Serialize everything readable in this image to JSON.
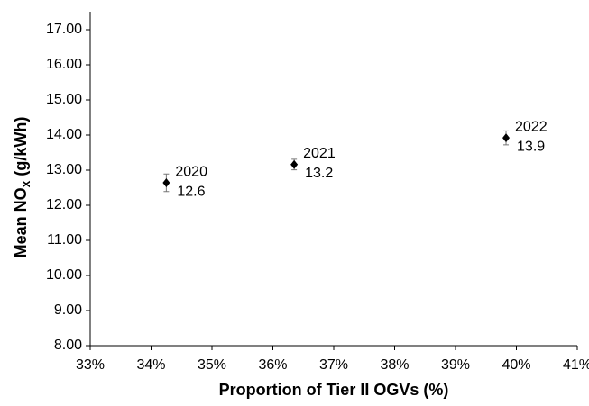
{
  "chart_data": {
    "type": "scatter",
    "x_label": "Proportion of Tier II OGVs (%)",
    "y_label": {
      "text": "Mean NO",
      "subscript": "x",
      "suffix": " (g/kWh)"
    },
    "series": [
      {
        "color": "#000000",
        "x": [
          34.25,
          36.35,
          39.83
        ],
        "values": [
          12.64,
          13.16,
          13.92
        ],
        "errors": [
          0.25,
          0.15,
          0.2
        ],
        "labels": [
          "2020",
          "2021",
          "2022"
        ],
        "value_labels": [
          "12.6",
          "13.2",
          "13.9"
        ]
      }
    ],
    "xlim": [
      33,
      41
    ],
    "xticks": [
      {
        "value": 33,
        "label": "33%"
      },
      {
        "value": 34,
        "label": "34%"
      },
      {
        "value": 35,
        "label": "35%"
      },
      {
        "value": 36,
        "label": "36%"
      },
      {
        "value": 37,
        "label": "37%"
      },
      {
        "value": 38,
        "label": "38%"
      },
      {
        "value": 39,
        "label": "39%"
      },
      {
        "value": 40,
        "label": "40%"
      },
      {
        "value": 41,
        "label": "41%"
      }
    ],
    "ylim": [
      8,
      17
    ],
    "yticks": [
      {
        "value": 8,
        "label": "8.00"
      },
      {
        "value": 9,
        "label": "9.00"
      },
      {
        "value": 10,
        "label": "10.00"
      },
      {
        "value": 11,
        "label": "11.00"
      },
      {
        "value": 12,
        "label": "12.00"
      },
      {
        "value": 13,
        "label": "13.00"
      },
      {
        "value": 14,
        "label": "14.00"
      },
      {
        "value": 15,
        "label": "15.00"
      },
      {
        "value": 16,
        "label": "16.00"
      },
      {
        "value": 17,
        "label": "17.00"
      }
    ],
    "grid": false
  }
}
